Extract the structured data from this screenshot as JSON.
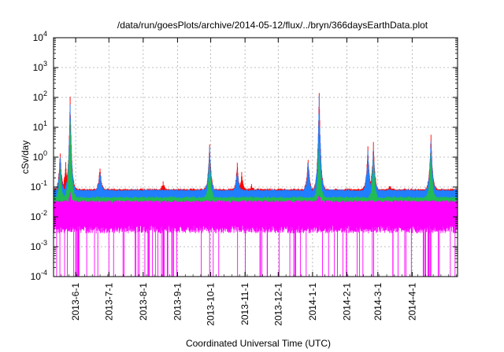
{
  "chart_data": {
    "type": "line",
    "title": "/data/run/goesPlots/archive/2014-05-12/flux/../bryn/366daysEarthData.plot",
    "xlabel": "Coordinated Universal Time (UTC)",
    "ylabel": "cSv/day",
    "yscale": "log",
    "ylim": [
      0.0001,
      10000
    ],
    "xlim": [
      "2013-05-12",
      "2014-05-12"
    ],
    "grid": true,
    "legend": "none",
    "y_ticks": [
      {
        "value": 0.0001,
        "base": "10",
        "exp": "-4"
      },
      {
        "value": 0.001,
        "base": "10",
        "exp": "-3"
      },
      {
        "value": 0.01,
        "base": "10",
        "exp": "-2"
      },
      {
        "value": 0.1,
        "base": "10",
        "exp": "-1"
      },
      {
        "value": 1,
        "base": "10",
        "exp": "0"
      },
      {
        "value": 10,
        "base": "10",
        "exp": "1"
      },
      {
        "value": 100,
        "base": "10",
        "exp": "2"
      },
      {
        "value": 1000,
        "base": "10",
        "exp": "3"
      },
      {
        "value": 10000,
        "base": "10",
        "exp": "4"
      }
    ],
    "x_ticks": [
      {
        "date": "2013-06-01",
        "label": "2013-6-1"
      },
      {
        "date": "2013-07-01",
        "label": "2013-7-1"
      },
      {
        "date": "2013-08-01",
        "label": "2013-8-1"
      },
      {
        "date": "2013-09-01",
        "label": "2013-9-1"
      },
      {
        "date": "2013-10-01",
        "label": "2013-10-1"
      },
      {
        "date": "2013-11-01",
        "label": "2013-11-1"
      },
      {
        "date": "2013-12-01",
        "label": "2013-12-1"
      },
      {
        "date": "2014-01-01",
        "label": "2014-1-1"
      },
      {
        "date": "2014-02-01",
        "label": "2014-2-1"
      },
      {
        "date": "2014-03-01",
        "label": "2014-3-1"
      },
      {
        "date": "2014-04-01",
        "label": "2014-4-1"
      }
    ],
    "series": [
      {
        "color": "#ff0000",
        "baseline": 0.075,
        "band_low": 0.05,
        "peaks": [
          {
            "date": "2013-05-18",
            "value": 1.6
          },
          {
            "date": "2013-05-23",
            "value": 0.7
          },
          {
            "date": "2013-05-27",
            "value": 100
          },
          {
            "date": "2013-06-23",
            "value": 0.5
          },
          {
            "date": "2013-08-19",
            "value": 0.15
          },
          {
            "date": "2013-09-30",
            "value": 3.0
          },
          {
            "date": "2013-10-25",
            "value": 0.6
          },
          {
            "date": "2013-10-29",
            "value": 0.3
          },
          {
            "date": "2013-11-07",
            "value": 0.12
          },
          {
            "date": "2013-12-28",
            "value": 0.9
          },
          {
            "date": "2014-01-07",
            "value": 170
          },
          {
            "date": "2014-02-20",
            "value": 2.3
          },
          {
            "date": "2014-02-25",
            "value": 3.0
          },
          {
            "date": "2014-03-12",
            "value": 0.12
          },
          {
            "date": "2014-04-18",
            "value": 6.0
          }
        ]
      },
      {
        "color": "#1f7fff",
        "baseline": 0.07,
        "band_low": 0.03,
        "peaks": [
          {
            "date": "2013-05-18",
            "value": 1.0
          },
          {
            "date": "2013-05-27",
            "value": 60
          },
          {
            "date": "2013-06-23",
            "value": 0.35
          },
          {
            "date": "2013-09-30",
            "value": 2.0
          },
          {
            "date": "2013-10-25",
            "value": 0.4
          },
          {
            "date": "2013-12-28",
            "value": 0.6
          },
          {
            "date": "2014-01-07",
            "value": 110
          },
          {
            "date": "2014-02-20",
            "value": 1.5
          },
          {
            "date": "2014-02-25",
            "value": 2.0
          },
          {
            "date": "2014-04-18",
            "value": 4.0
          }
        ]
      },
      {
        "color": "#22bb55",
        "baseline": 0.04,
        "band_low": 0.025,
        "peaks": [
          {
            "date": "2013-05-18",
            "value": 0.4
          },
          {
            "date": "2013-05-27",
            "value": 20
          },
          {
            "date": "2013-09-30",
            "value": 0.7
          },
          {
            "date": "2014-01-07",
            "value": 3.0
          },
          {
            "date": "2014-02-25",
            "value": 0.8
          },
          {
            "date": "2014-04-18",
            "value": 1.5
          }
        ]
      },
      {
        "color": "#ff00ff",
        "baseline": 0.03,
        "band_low": 0.004,
        "drop_value": 0.0001,
        "peaks": [
          {
            "date": "2013-05-27",
            "value": 0.06
          },
          {
            "date": "2014-01-07",
            "value": 0.06
          }
        ]
      }
    ]
  }
}
